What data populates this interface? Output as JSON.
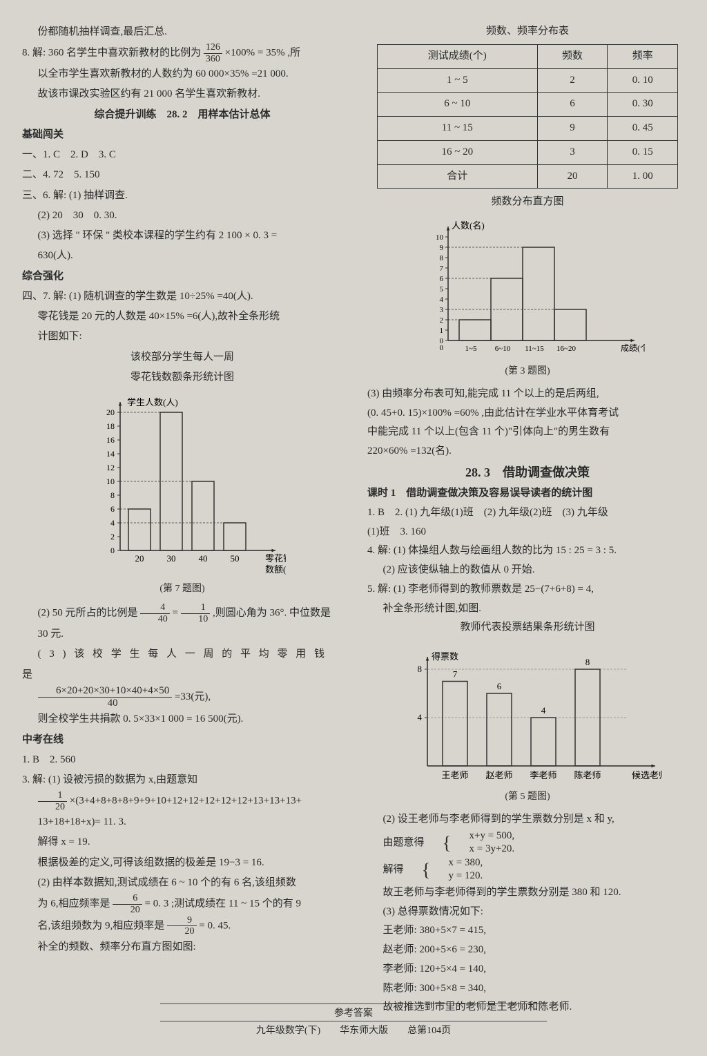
{
  "left": {
    "p1": "份都随机抽样调查,最后汇总.",
    "p2a": "8. 解: 360 名学生中喜欢新教材的比例为",
    "p2b": "×100% = 35% ,所",
    "frac1_num": "126",
    "frac1_den": "360",
    "p3": "以全市学生喜欢新教材的人数约为 60 000×35% =21 000.",
    "p4": "故该市课改实验区约有 21 000 名学生喜欢新教材.",
    "h1": "综合提升训练　28. 2　用样本估计总体",
    "h2": "基础闯关",
    "a1": "一、1. C　2. D　3. C",
    "a2": "二、4. 72　5. 150",
    "a3": "三、6. 解: (1) 抽样调查.",
    "a3b": "(2) 20　30　0. 30.",
    "a3c": "(3) 选择 \" 环保 \" 类校本课程的学生约有 2 100 × 0. 3 =",
    "a3d": "630(人).",
    "h3": "综合强化",
    "a4": "四、7. 解: (1) 随机调查的学生数是 10÷25% =40(人).",
    "a4b": "零花钱是 20 元的人数是 40×15% =6(人),故补全条形统",
    "a4c": "计图如下:",
    "chart1_title1": "该校部分学生每人一周",
    "chart1_title2": "零花钱数额条形统计图",
    "chart1_ylabel": "学生人数(人)",
    "chart1_xlabel1": "零花钱",
    "chart1_xlabel2": "数额(元)",
    "chart1_xvals": [
      "20",
      "30",
      "40",
      "50"
    ],
    "chart1_yvals": [
      "0",
      "2",
      "4",
      "6",
      "8",
      "10",
      "12",
      "14",
      "16",
      "18",
      "20"
    ],
    "chart1_bars": [
      6,
      20,
      10,
      4
    ],
    "chart1_cap": "(第 7 题图)",
    "p5a": "(2) 50 元所占的比例是",
    "frac2_num": "4",
    "frac2_den": "40",
    "p5b": "=",
    "frac3_num": "1",
    "frac3_den": "10",
    "p5c": ",则圆心角为 36°. 中位数是",
    "p6": "30 元.",
    "p7": "( 3 ) 该 校 学 生 每 人 一 周 的 平 均 零 用 钱 是",
    "frac4_num": "6×20+20×30+10×40+4×50",
    "frac4_den": "40",
    "p8": "=33(元),",
    "p9": "则全校学生共捐款 0. 5×33×1 000 = 16 500(元).",
    "h4": "中考在线",
    "a5": "1. B　2. 560",
    "a6": "3. 解: (1) 设被污损的数据为 x,由题意知",
    "frac5_num": "1",
    "frac5_den": "20",
    "p10": "×(3+4+8+8+8+9+9+10+12+12+12+12+12+13+13+13+",
    "p11": "13+18+18+x)= 11. 3.",
    "p12": "解得 x = 19.",
    "p13": "根据极差的定义,可得该组数据的极差是 19−3 = 16.",
    "p14": "(2) 由样本数据知,测试成绩在 6 ~ 10 个的有 6 名,该组频数",
    "p15a": "为 6,相应频率是",
    "frac6_num": "6",
    "frac6_den": "20",
    "p15b": "= 0. 3 ;测试成绩在 11 ~ 15 个的有 9",
    "p16a": "名,该组频数为 9,相应频率是",
    "frac7_num": "9",
    "frac7_den": "20",
    "p16b": "= 0. 45.",
    "p17": "补全的频数、频率分布直方图如图:"
  },
  "right": {
    "table_title": "频数、频率分布表",
    "table_headers": [
      "测试成绩(个)",
      "频数",
      "频率"
    ],
    "table_rows": [
      [
        "1 ~ 5",
        "2",
        "0. 10"
      ],
      [
        "6 ~ 10",
        "6",
        "0. 30"
      ],
      [
        "11 ~ 15",
        "9",
        "0. 45"
      ],
      [
        "16 ~ 20",
        "3",
        "0. 15"
      ],
      [
        "合计",
        "20",
        "1. 00"
      ]
    ],
    "chart2_title": "频数分布直方图",
    "chart2_ylabel": "人数(名)",
    "chart2_xlabel": "成绩(个)",
    "chart2_xvals": [
      "1~5",
      "6~10",
      "11~15",
      "16~20"
    ],
    "chart2_yvals": [
      "0",
      "1",
      "2",
      "3",
      "4",
      "5",
      "6",
      "7",
      "8",
      "9",
      "10"
    ],
    "chart2_bars": [
      2,
      6,
      9,
      3
    ],
    "chart2_cap": "(第 3 题图)",
    "p1": "(3) 由频率分布表可知,能完成 11 个以上的是后两组,",
    "p2": "(0. 45+0. 15)×100% =60% ,由此估计在学业水平体育考试",
    "p3": "中能完成 11 个以上(包含 11 个)\"引体向上\"的男生数有",
    "p4": "220×60% =132(名).",
    "h1": "28. 3　借助调查做决策",
    "h2": "课时 1　借助调查做决策及容易误导读者的统计图",
    "a1": "1. B　2. (1) 九年级(1)班　(2) 九年级(2)班　(3) 九年级",
    "a1b": "(1)班　3. 160",
    "a2": "4. 解: (1) 体操组人数与绘画组人数的比为 15 : 25 = 3 : 5.",
    "a2b": "(2) 应该使纵轴上的数值从 0 开始.",
    "a3": "5. 解: (1) 李老师得到的教师票数是 25−(7+6+8) = 4,",
    "a3b": "补全条形统计图,如图.",
    "chart3_title": "教师代表投票结果条形统计图",
    "chart3_ylabel": "得票数",
    "chart3_xlabel": "候选老师",
    "chart3_xvals": [
      "王老师",
      "赵老师",
      "李老师",
      "陈老师"
    ],
    "chart3_yvals": [
      "4",
      "8"
    ],
    "chart3_bars": [
      7,
      6,
      4,
      8
    ],
    "chart3_barlabels": [
      "7",
      "6",
      "4",
      "8"
    ],
    "chart3_cap": "(第 5 题图)",
    "p5": "(2) 设王老师与李老师得到的学生票数分别是 x 和 y,",
    "p6": "由题意得",
    "sys1a": "x+y = 500,",
    "sys1b": "x = 3y+20.",
    "p7": "解得",
    "sys2a": "x = 380,",
    "sys2b": "y = 120.",
    "p8": "故王老师与李老师得到的学生票数分别是 380 和 120.",
    "p9": "(3) 总得票数情况如下:",
    "p10": "王老师: 380+5×7 = 415,",
    "p11": "赵老师: 200+5×6 = 230,",
    "p12": "李老师: 120+5×4 = 140,",
    "p13": "陈老师: 300+5×8 = 340,",
    "p14": "故被推选到市里的老师是王老师和陈老师."
  },
  "footer": {
    "l1": "参考答案",
    "l2": "九年级数学(下)　　华东师大版　　总第104页"
  },
  "chart_style": {
    "bar_fill": "none",
    "bar_stroke": "#2a2a2a",
    "axis_stroke": "#2a2a2a",
    "dash": "3,2"
  }
}
